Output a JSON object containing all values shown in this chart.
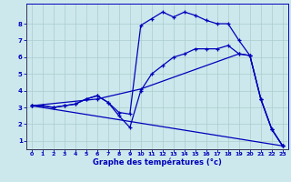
{
  "xlabel": "Graphe des températures (°c)",
  "bg_color": "#cce8ec",
  "line_color": "#0000bb",
  "grid_color": "#aacccc",
  "xlim": [
    -0.5,
    23.5
  ],
  "ylim": [
    0.5,
    9.2
  ],
  "xticks": [
    0,
    1,
    2,
    3,
    4,
    5,
    6,
    7,
    8,
    9,
    10,
    11,
    12,
    13,
    14,
    15,
    16,
    17,
    18,
    19,
    20,
    21,
    22,
    23
  ],
  "yticks": [
    1,
    2,
    3,
    4,
    5,
    6,
    7,
    8
  ],
  "line1_x": [
    0,
    1,
    2,
    3,
    4,
    5,
    6,
    7,
    8,
    9,
    10,
    11,
    12,
    13,
    14,
    15,
    16,
    17,
    18,
    19,
    20,
    21,
    22,
    23
  ],
  "line1_y": [
    3.1,
    3.1,
    3.0,
    3.1,
    3.2,
    3.5,
    3.7,
    3.3,
    2.5,
    1.8,
    4.0,
    5.0,
    5.5,
    6.0,
    6.2,
    6.5,
    6.5,
    6.5,
    6.7,
    6.2,
    6.1,
    3.5,
    1.7,
    0.7
  ],
  "line2_x": [
    0,
    1,
    2,
    3,
    4,
    5,
    6,
    7,
    8,
    9,
    10,
    11,
    12,
    13,
    14,
    15,
    16,
    17,
    18,
    19,
    20,
    21,
    22,
    23
  ],
  "line2_y": [
    3.1,
    3.1,
    3.0,
    3.1,
    3.2,
    3.5,
    3.7,
    3.3,
    2.7,
    2.6,
    7.9,
    8.3,
    8.7,
    8.4,
    8.7,
    8.5,
    8.2,
    8.0,
    8.0,
    7.0,
    6.1,
    3.5,
    1.7,
    0.7
  ],
  "line3_x": [
    0,
    6,
    10,
    19,
    20,
    21,
    22,
    23
  ],
  "line3_y": [
    3.1,
    3.5,
    4.1,
    6.2,
    6.1,
    3.5,
    1.7,
    0.7
  ],
  "line4_x": [
    0,
    23
  ],
  "line4_y": [
    3.1,
    0.7
  ]
}
